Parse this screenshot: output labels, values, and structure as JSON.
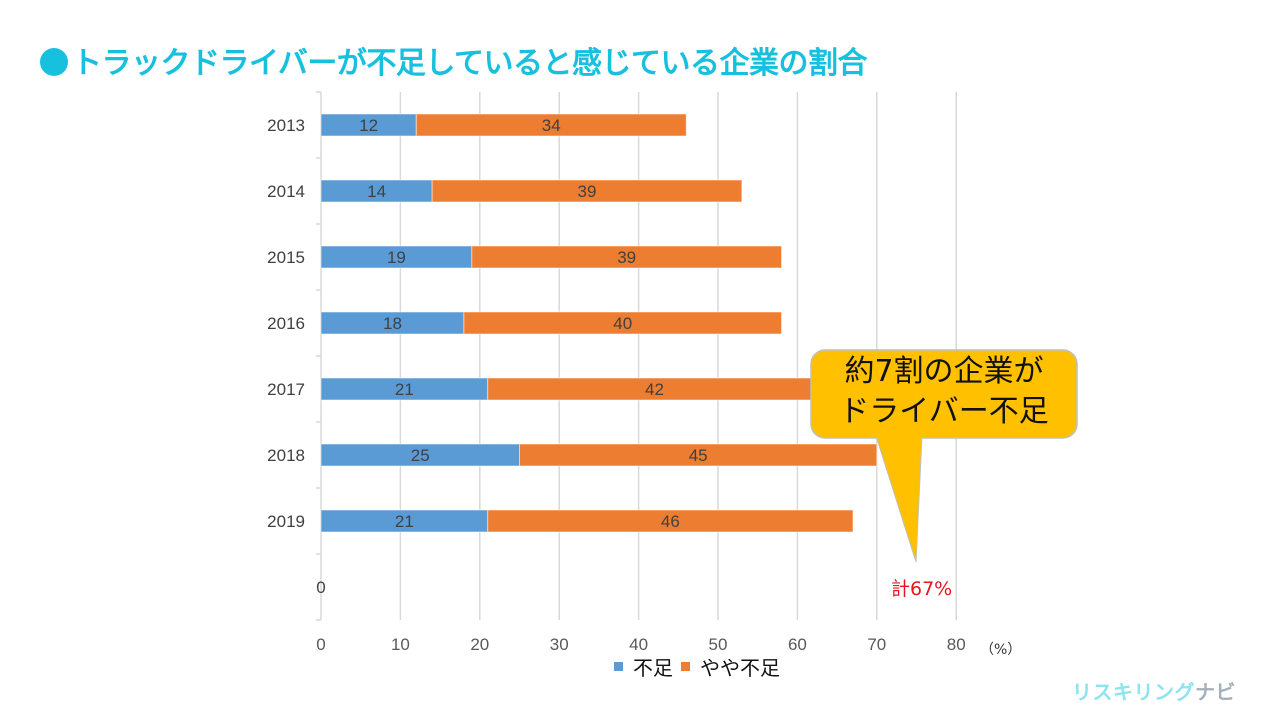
{
  "title": "トラックドライバーが不足していると感じている企業の割合",
  "chart_data": {
    "type": "bar",
    "orientation": "horizontal",
    "stacked": true,
    "title": "トラックドライバーが不足していると感じている企業の割合",
    "categories": [
      "2013",
      "2014",
      "2015",
      "2016",
      "2017",
      "2018",
      "2019",
      "0"
    ],
    "series": [
      {
        "name": "不足",
        "color": "#5B9BD5",
        "values": [
          12,
          14,
          19,
          18,
          21,
          25,
          21,
          null
        ]
      },
      {
        "name": "やや不足",
        "color": "#ED7D31",
        "values": [
          34,
          39,
          39,
          40,
          42,
          45,
          46,
          null
        ]
      }
    ],
    "xlabel": "",
    "xunit": "（%）",
    "ylabel": "",
    "xlim": [
      0,
      80
    ],
    "xticks": [
      "0",
      "10",
      "20",
      "30",
      "40",
      "50",
      "60",
      "70",
      "80"
    ],
    "grid": true,
    "legend": "bottom",
    "annotations": [
      {
        "text": "約7割の企業が\nドライバー不足",
        "type": "callout",
        "color": "#FFC000"
      },
      {
        "text": "計67%",
        "color": "#E8141B"
      }
    ]
  },
  "callout": {
    "line1": "約7割の企業が",
    "line2": "ドライバー不足"
  },
  "total_label": "計67%",
  "unit_label": "（%）",
  "legend": [
    {
      "label": "不足",
      "color": "#5B9BD5"
    },
    {
      "label": "やや不足",
      "color": "#ED7D31"
    }
  ],
  "brand": {
    "part1": "リスキリング",
    "part2": "ナビ"
  },
  "colors": {
    "title": "#17C0DE",
    "grid": "#D9D9D9",
    "callout": "#FFC000"
  }
}
